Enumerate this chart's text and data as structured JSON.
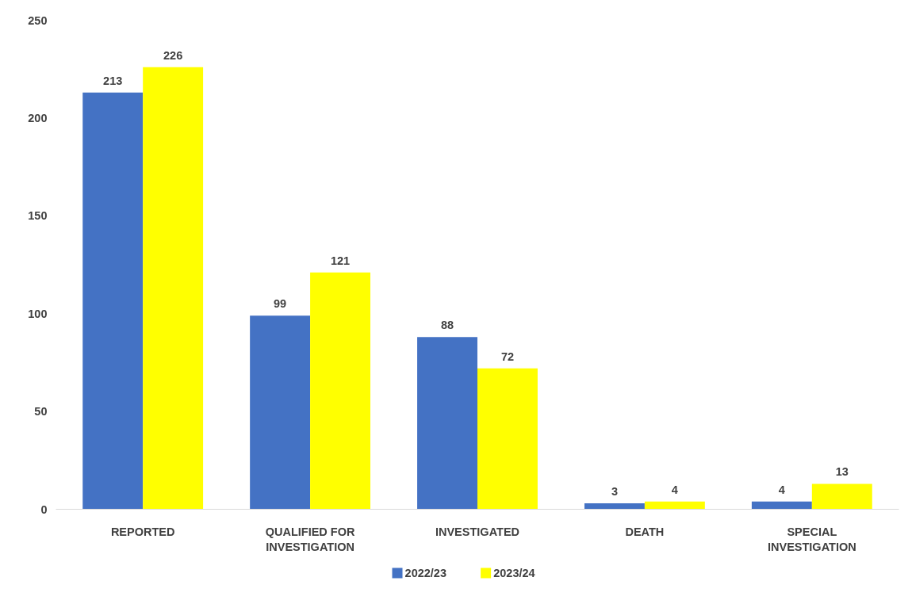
{
  "chart_data": {
    "type": "bar",
    "categories": [
      "REPORTED",
      "QUALIFIED FOR INVESTIGATION",
      "INVESTIGATED",
      "DEATH",
      "SPECIAL INVESTIGATION"
    ],
    "series": [
      {
        "name": "2022/23",
        "color": "#4472c4",
        "values": [
          213,
          99,
          88,
          3,
          4
        ]
      },
      {
        "name": "2023/24",
        "color": "#ffff00",
        "values": [
          226,
          121,
          72,
          4,
          13
        ]
      }
    ],
    "ylim": [
      0,
      250
    ],
    "yticks": [
      0,
      50,
      100,
      150,
      200,
      250
    ],
    "grid": false,
    "legend": "bottom",
    "data_labels": true
  }
}
